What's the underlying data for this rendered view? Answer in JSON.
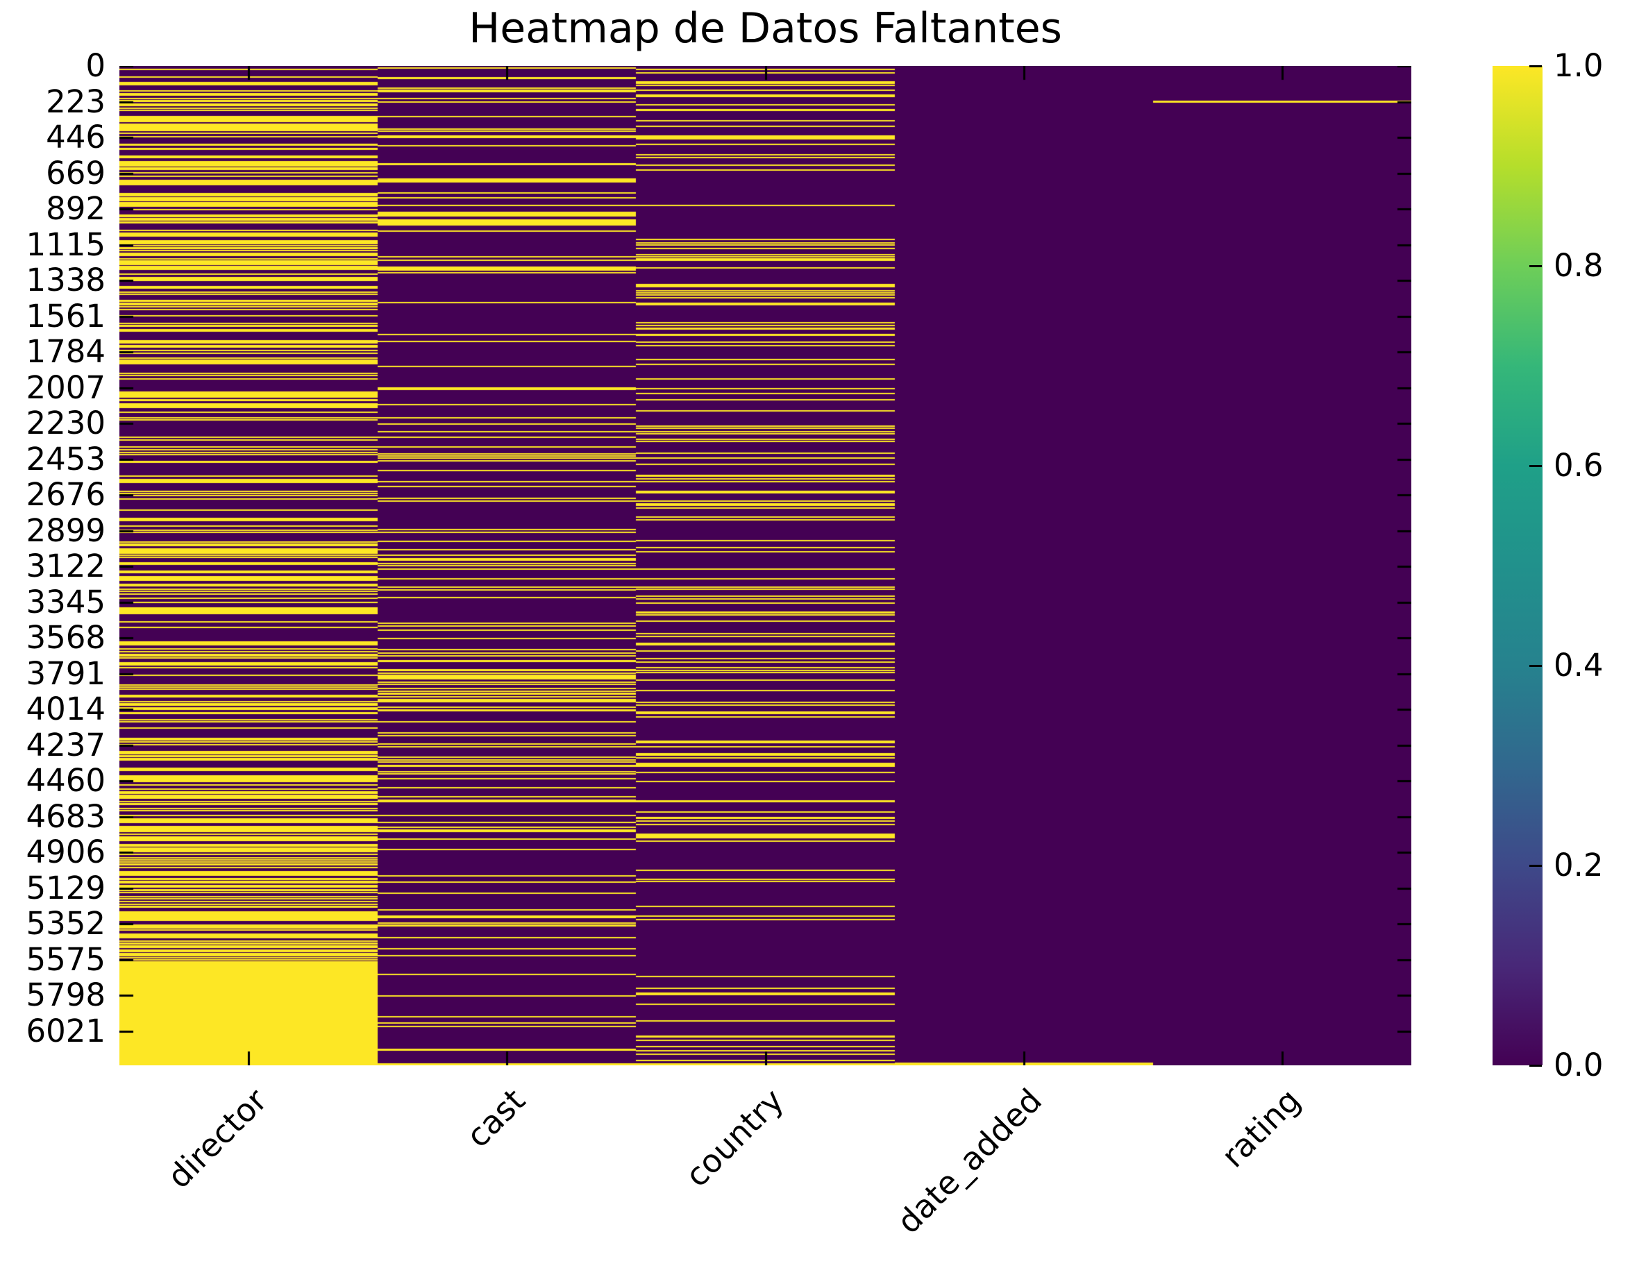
{
  "chart_data": {
    "type": "heatmap",
    "title": "Heatmap de Datos Faltantes",
    "subtitle": "",
    "columns": [
      "director",
      "cast",
      "country",
      "date_added",
      "rating"
    ],
    "x_tick_labels": [
      "director",
      "cast",
      "country",
      "date_added",
      "rating"
    ],
    "n_rows": 6234,
    "y_axis": {
      "min_row": 0,
      "max_row": 6233,
      "tick_step": 223
    },
    "y_tick_labels": [
      "0",
      "223",
      "446",
      "669",
      "892",
      "1115",
      "1338",
      "1561",
      "1784",
      "2007",
      "2230",
      "2453",
      "2676",
      "2899",
      "3122",
      "3345",
      "3568",
      "3791",
      "4014",
      "4237",
      "4460",
      "4683",
      "4906",
      "5129",
      "5352",
      "5575",
      "5798",
      "6021"
    ],
    "grid": false,
    "legend_position": "right-colorbar",
    "colorbar": {
      "min": 0.0,
      "max": 1.0,
      "tick_labels": [
        "0.0",
        "0.2",
        "0.4",
        "0.6",
        "0.8",
        "1.0"
      ],
      "colormap": "viridis"
    },
    "colormap_stops": [
      {
        "pos": 0.0,
        "color": "#440154"
      },
      {
        "pos": 0.1,
        "color": "#482878"
      },
      {
        "pos": 0.2,
        "color": "#3e4989"
      },
      {
        "pos": 0.3,
        "color": "#31688e"
      },
      {
        "pos": 0.4,
        "color": "#26828e"
      },
      {
        "pos": 0.5,
        "color": "#21918c"
      },
      {
        "pos": 0.6,
        "color": "#1fa088"
      },
      {
        "pos": 0.7,
        "color": "#35b779"
      },
      {
        "pos": 0.8,
        "color": "#6ece58"
      },
      {
        "pos": 0.9,
        "color": "#b5de2b"
      },
      {
        "pos": 1.0,
        "color": "#fde725"
      }
    ],
    "value_encoding": {
      "missing": 1,
      "present": 0
    },
    "colors": {
      "present": "#440154",
      "missing": "#fde725",
      "tick": "#000000",
      "text": "#000000"
    },
    "estimated_missing_fraction": {
      "director": 0.31,
      "cast": 0.09,
      "country": 0.075,
      "date_added": 0.002,
      "rating": 0.0002
    },
    "missing_distribution_bands": {
      "director": [
        [
          0.0,
          0.015,
          0.08
        ],
        [
          0.015,
          0.09,
          0.3
        ],
        [
          0.09,
          0.175,
          0.25
        ],
        [
          0.175,
          0.2,
          0.38
        ],
        [
          0.2,
          0.31,
          0.24
        ],
        [
          0.31,
          0.43,
          0.2
        ],
        [
          0.43,
          0.5,
          0.28
        ],
        [
          0.5,
          0.565,
          0.17
        ],
        [
          0.565,
          0.6,
          0.3
        ],
        [
          0.6,
          0.68,
          0.22
        ],
        [
          0.68,
          0.75,
          0.3
        ],
        [
          0.75,
          0.858,
          0.34
        ],
        [
          0.858,
          0.896,
          0.5
        ],
        [
          0.896,
          1.0,
          0.93
        ]
      ],
      "cast": [
        [
          0.0,
          0.01,
          0.25
        ],
        [
          0.01,
          0.145,
          0.09
        ],
        [
          0.145,
          0.156,
          0.45
        ],
        [
          0.156,
          0.6,
          0.075
        ],
        [
          0.6,
          0.645,
          0.32
        ],
        [
          0.645,
          0.93,
          0.085
        ],
        [
          0.93,
          1.0,
          0.11
        ]
      ],
      "country": [
        [
          0.0,
          0.006,
          0.3
        ],
        [
          0.006,
          0.03,
          0.2
        ],
        [
          0.03,
          0.1,
          0.1
        ],
        [
          0.1,
          0.42,
          0.065
        ],
        [
          0.42,
          0.46,
          0.13
        ],
        [
          0.46,
          0.62,
          0.07
        ],
        [
          0.62,
          0.78,
          0.1
        ],
        [
          0.78,
          0.97,
          0.045
        ],
        [
          0.97,
          1.0,
          0.12
        ]
      ],
      "date_added": [
        [
          0.9972,
          1.0,
          1.0
        ]
      ],
      "rating": []
    },
    "explicit_missing_rows": {
      "rating": [
        216
      ],
      "cast": [
        6222
      ],
      "country": [
        6222
      ]
    }
  }
}
